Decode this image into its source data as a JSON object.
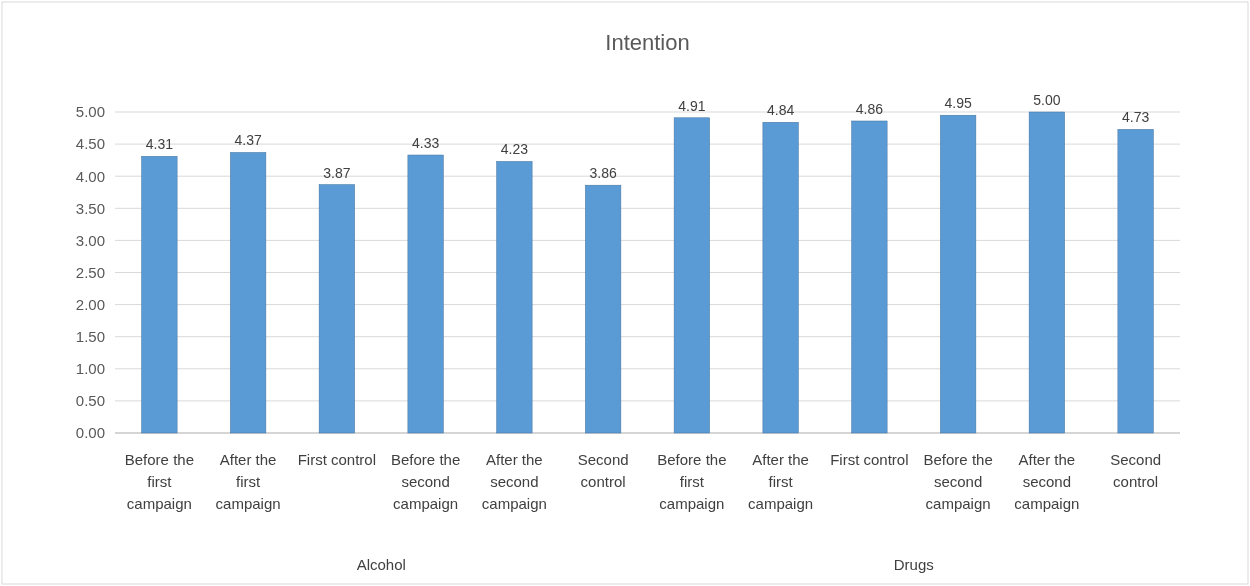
{
  "chart_data": {
    "type": "bar",
    "title": "Intention",
    "categories": [
      "Before the first campaign",
      "After the first campaign",
      "First control",
      "Before the second campaign",
      "After the second campaign",
      "Second control",
      "Before the first campaign",
      "After the first campaign",
      "First control",
      "Before the second campaign",
      "After the second campaign",
      "Second control"
    ],
    "values": [
      4.31,
      4.37,
      3.87,
      4.33,
      4.23,
      3.86,
      4.91,
      4.84,
      4.86,
      4.95,
      5.0,
      4.73
    ],
    "value_labels": [
      "4.31",
      "4.37",
      "3.87",
      "4.33",
      "4.23",
      "3.86",
      "4.91",
      "4.84",
      "4.86",
      "4.95",
      "5.00",
      "4.73"
    ],
    "color": "#5b9bd5",
    "ylim": [
      0,
      5
    ],
    "yticks": [
      {
        "value": 0,
        "label": "0.00"
      },
      {
        "value": 0.5,
        "label": "0.50"
      },
      {
        "value": 1,
        "label": "1.00"
      },
      {
        "value": 1.5,
        "label": "1.50"
      },
      {
        "value": 2,
        "label": "2.00"
      },
      {
        "value": 2.5,
        "label": "2.50"
      },
      {
        "value": 3,
        "label": "3.00"
      },
      {
        "value": 3.5,
        "label": "3.50"
      },
      {
        "value": 4,
        "label": "4.00"
      },
      {
        "value": 4.5,
        "label": "4.50"
      },
      {
        "value": 5,
        "label": "5.00"
      }
    ],
    "grid": "y",
    "annotations": [
      "Alcohol",
      "Drugs"
    ]
  }
}
